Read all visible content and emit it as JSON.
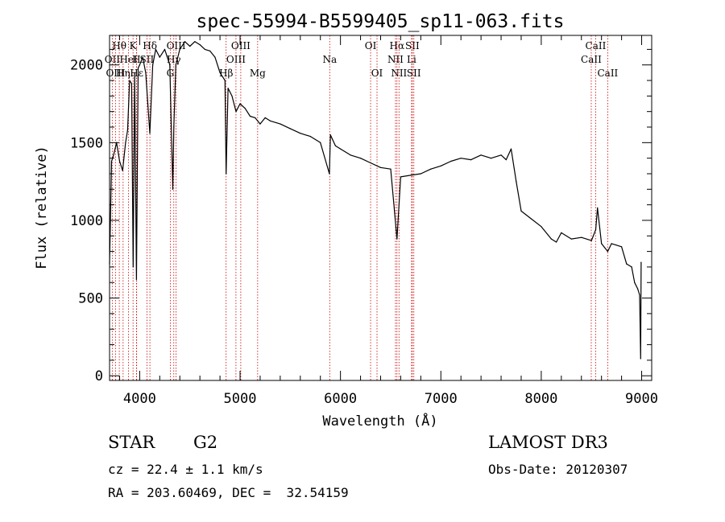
{
  "chart_data": {
    "type": "line",
    "title": "spec-55994-B5599405_sp11-063.fits",
    "xlabel": "Wavelength (Å)",
    "ylabel": "Flux (relative)",
    "xlim": [
      3700,
      9100
    ],
    "ylim": [
      -30,
      2190
    ],
    "xticks": [
      4000,
      5000,
      6000,
      7000,
      8000,
      9000
    ],
    "yticks": [
      0,
      500,
      1000,
      1500,
      2000
    ],
    "series": [
      {
        "name": "spectrum",
        "x": [
          3700,
          3720,
          3740,
          3770,
          3800,
          3830,
          3860,
          3880,
          3900,
          3920,
          3935,
          3950,
          3968,
          3985,
          4000,
          4030,
          4060,
          4101,
          4130,
          4160,
          4200,
          4250,
          4300,
          4330,
          4340,
          4360,
          4400,
          4450,
          4500,
          4550,
          4600,
          4650,
          4700,
          4750,
          4800,
          4850,
          4861,
          4880,
          4920,
          4960,
          5000,
          5050,
          5100,
          5150,
          5200,
          5250,
          5300,
          5400,
          5500,
          5600,
          5700,
          5800,
          5890,
          5900,
          5950,
          6000,
          6100,
          6200,
          6300,
          6400,
          6500,
          6563,
          6600,
          6700,
          6800,
          6900,
          7000,
          7100,
          7200,
          7300,
          7400,
          7500,
          7600,
          7650,
          7700,
          7750,
          7800,
          7900,
          8000,
          8100,
          8150,
          8200,
          8300,
          8400,
          8500,
          8542,
          8560,
          8600,
          8662,
          8700,
          8800,
          8850,
          8900,
          8930,
          8960,
          8980,
          8990,
          8995
        ],
        "y": [
          720,
          1380,
          1420,
          1500,
          1380,
          1320,
          1500,
          1580,
          1900,
          1880,
          700,
          1950,
          620,
          1980,
          2000,
          2050,
          1950,
          1560,
          2000,
          2100,
          2050,
          2100,
          2000,
          1200,
          1600,
          2000,
          2100,
          2150,
          2120,
          2150,
          2130,
          2100,
          2090,
          2050,
          1950,
          1900,
          1300,
          1850,
          1800,
          1700,
          1750,
          1720,
          1670,
          1660,
          1620,
          1660,
          1640,
          1620,
          1590,
          1560,
          1540,
          1500,
          1300,
          1550,
          1480,
          1460,
          1420,
          1400,
          1370,
          1340,
          1330,
          880,
          1280,
          1290,
          1300,
          1330,
          1350,
          1380,
          1400,
          1390,
          1420,
          1400,
          1420,
          1390,
          1460,
          1250,
          1060,
          1010,
          960,
          880,
          860,
          920,
          880,
          890,
          870,
          940,
          1080,
          850,
          800,
          850,
          830,
          720,
          700,
          600,
          560,
          520,
          110,
          730
        ]
      }
    ],
    "line_markers": [
      {
        "label": "Hθ",
        "wavelength": 3797,
        "row": 1
      },
      {
        "label": "OII",
        "wavelength": 3727,
        "row": 2
      },
      {
        "label": "OIII",
        "wavelength": 3760,
        "row": 3
      },
      {
        "label": "HeI",
        "wavelength": 3889,
        "row": 2
      },
      {
        "label": "Hη",
        "wavelength": 3835,
        "row": 3
      },
      {
        "label": "K",
        "wavelength": 3934,
        "row": 1
      },
      {
        "label": "H",
        "wavelength": 3968,
        "row": 2
      },
      {
        "label": "Hδ",
        "wavelength": 4102,
        "row": 1
      },
      {
        "label": "SII",
        "wavelength": 4072,
        "row": 2
      },
      {
        "label": "Hε",
        "wavelength": 3970,
        "row": 3
      },
      {
        "label": "OIII",
        "wavelength": 4363,
        "row": 1
      },
      {
        "label": "Hγ",
        "wavelength": 4340,
        "row": 2
      },
      {
        "label": "G",
        "wavelength": 4305,
        "row": 3
      },
      {
        "label": "OIII",
        "wavelength": 5007,
        "row": 1
      },
      {
        "label": "OIII",
        "wavelength": 4959,
        "row": 2
      },
      {
        "label": "Hβ",
        "wavelength": 4861,
        "row": 3
      },
      {
        "label": "Mg",
        "wavelength": 5175,
        "row": 3
      },
      {
        "label": "Na",
        "wavelength": 5893,
        "row": 2
      },
      {
        "label": "OI",
        "wavelength": 6300,
        "row": 1
      },
      {
        "label": "OI",
        "wavelength": 6364,
        "row": 3
      },
      {
        "label": "Hα",
        "wavelength": 6563,
        "row": 1
      },
      {
        "label": "NII",
        "wavelength": 6548,
        "row": 2
      },
      {
        "label": "NII",
        "wavelength": 6583,
        "row": 3
      },
      {
        "label": "SII",
        "wavelength": 6716,
        "row": 1
      },
      {
        "label": "Li",
        "wavelength": 6708,
        "row": 2
      },
      {
        "label": "SII",
        "wavelength": 6731,
        "row": 3
      },
      {
        "label": "CaII",
        "wavelength": 8542,
        "row": 1
      },
      {
        "label": "CaII",
        "wavelength": 8498,
        "row": 2
      },
      {
        "label": "CaII",
        "wavelength": 8662,
        "row": 3
      }
    ]
  },
  "info": {
    "object_class": "STAR",
    "subclass": "G2",
    "survey": "LAMOST DR3",
    "redshift": "cz = 22.4 ± 1.1 km/s",
    "obs_date": "Obs-Date: 20120307",
    "coords": "RA = 203.60469, DEC =  32.54159"
  }
}
